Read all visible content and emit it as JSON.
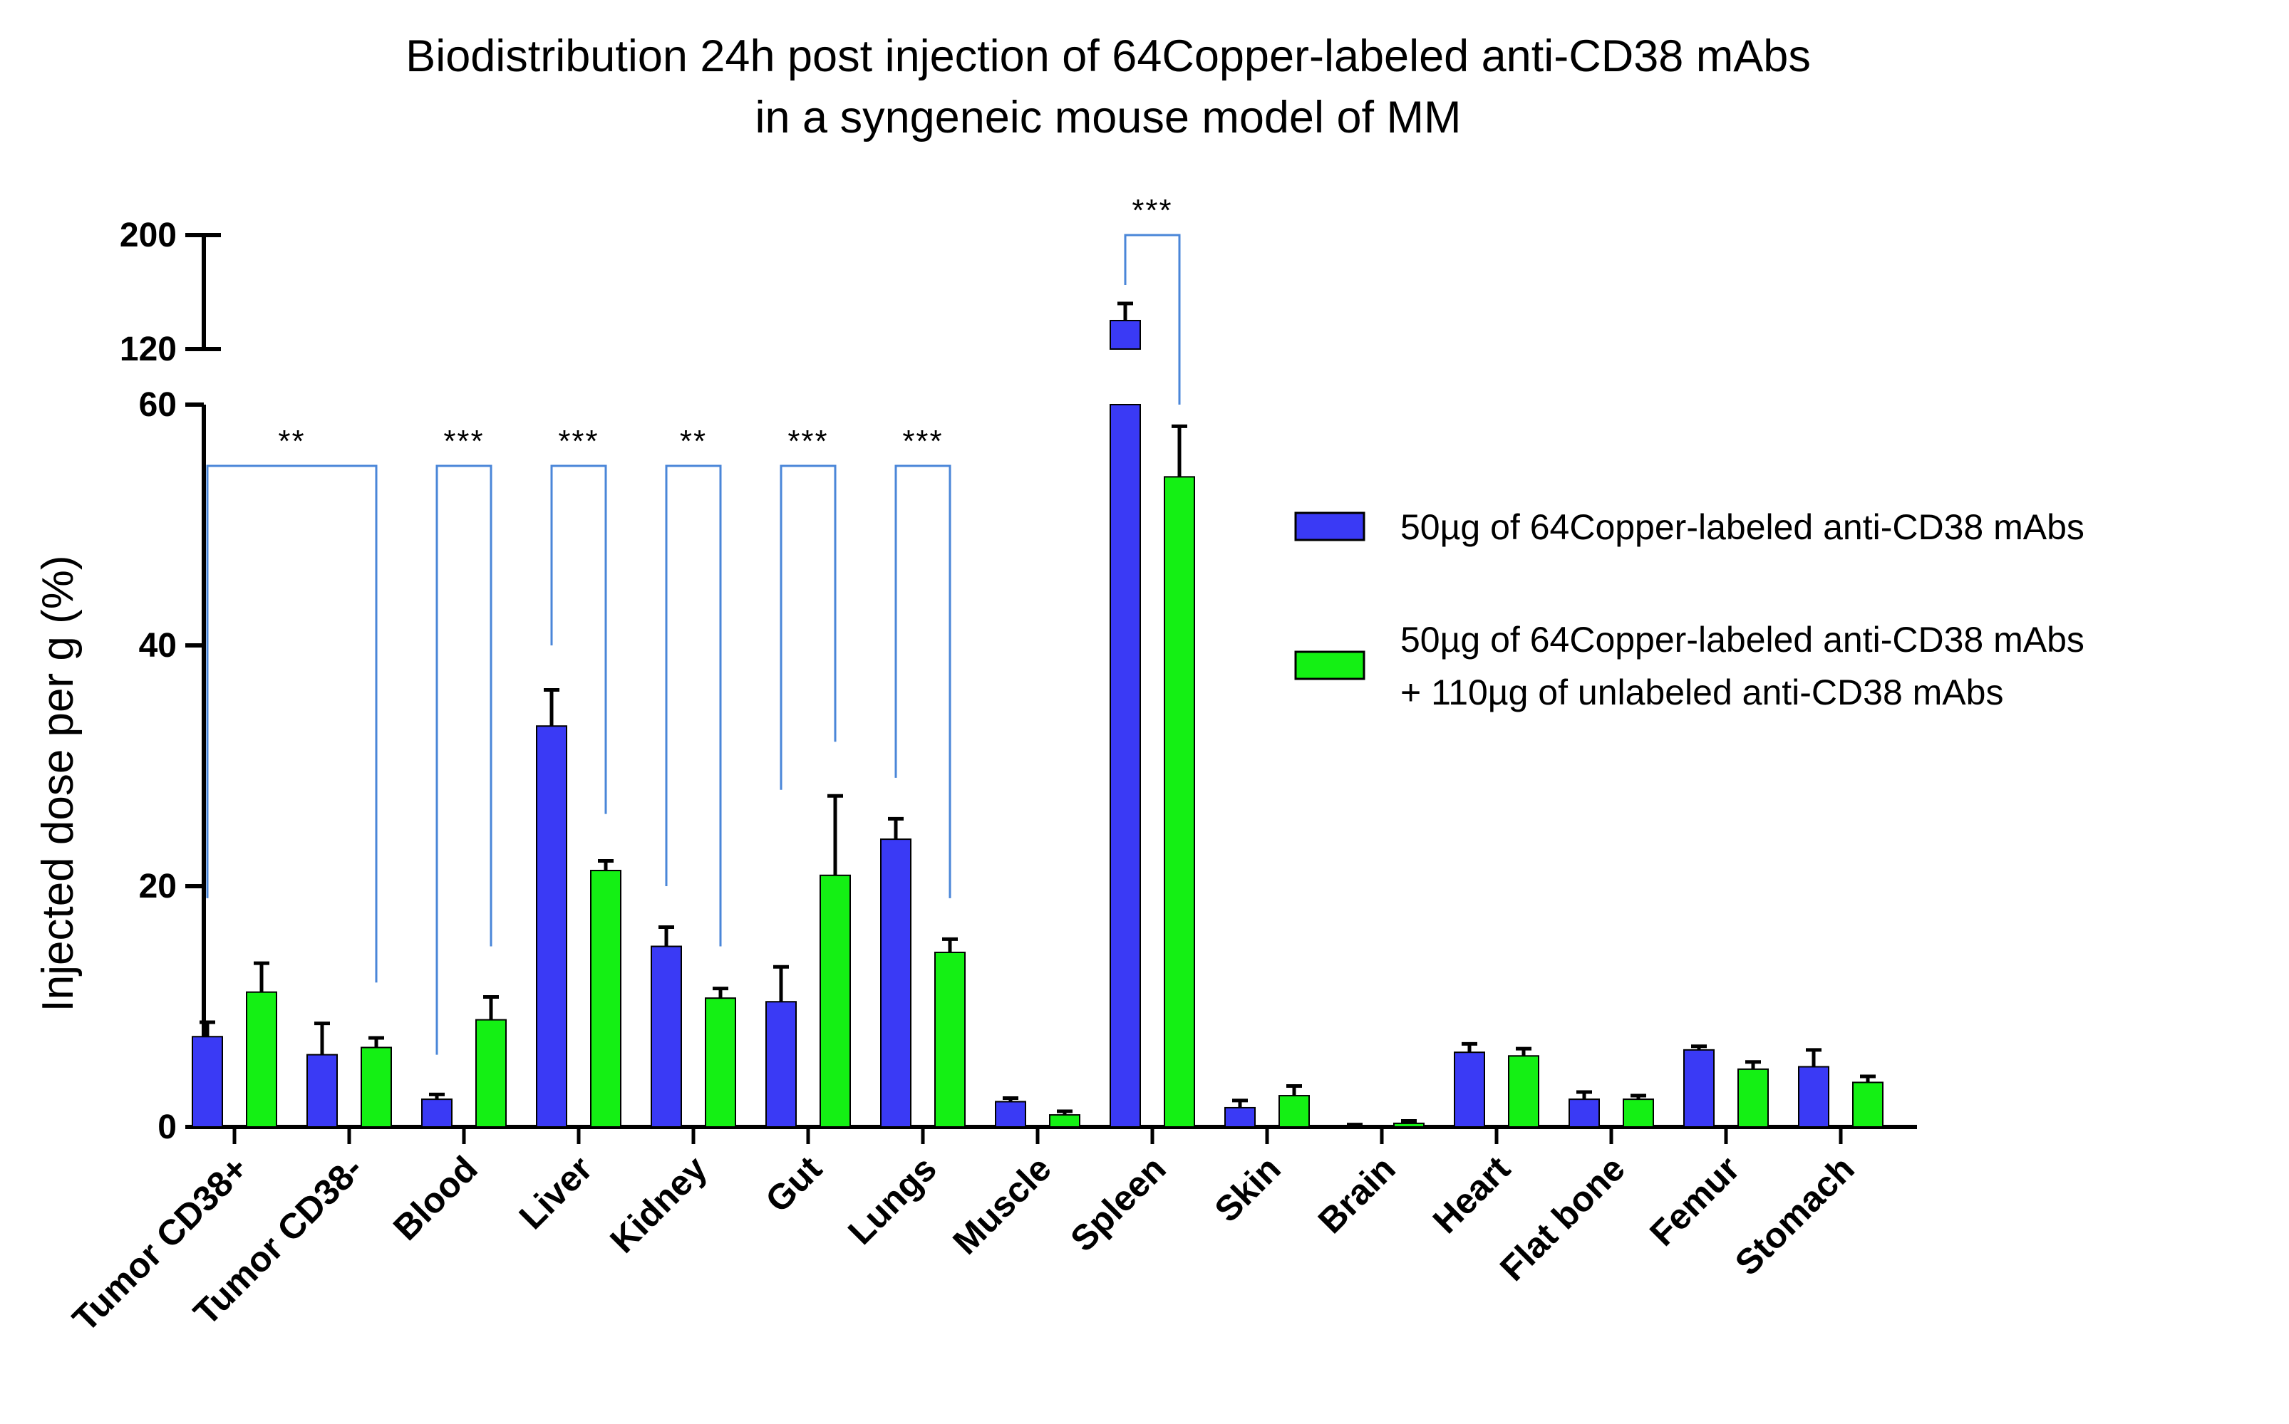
{
  "chart_data": {
    "type": "bar",
    "title_line1": "Biodistribution 24h post injection of 64Copper-labeled anti-CD38 mAbs",
    "title_line2": "in a syngeneic mouse model of MM",
    "ylabel": "Injected dose per g (%)",
    "xlabel": "",
    "y_axis_break": {
      "lower_range": [
        0,
        60
      ],
      "upper_range": [
        120,
        200
      ]
    },
    "yticks_lower": [
      0,
      20,
      40,
      60
    ],
    "yticks_upper": [
      120,
      200
    ],
    "categories": [
      "Tumor CD38+",
      "Tumor CD38-",
      "Blood",
      "Liver",
      "Kidney",
      "Gut",
      "Lungs",
      "Muscle",
      "Spleen",
      "Skin",
      "Brain",
      "Heart",
      "Flat bone",
      "Femur",
      "Stomach"
    ],
    "series": [
      {
        "name": "50µg of 64Copper-labeled anti-CD38 mAbs",
        "color": "#3a3af5",
        "values": [
          7.5,
          6.0,
          2.3,
          33.3,
          15.0,
          10.4,
          23.9,
          2.1,
          140,
          1.6,
          0.1,
          6.2,
          2.3,
          6.4,
          5.0
        ],
        "errors": [
          1.2,
          2.6,
          0.4,
          3.0,
          1.6,
          2.9,
          1.7,
          0.3,
          12,
          0.6,
          0.1,
          0.7,
          0.6,
          0.3,
          1.4
        ]
      },
      {
        "name_line1": "50µg of 64Copper-labeled anti-CD38 mAbs",
        "name_line2": "+ 110µg of unlabeled anti-CD38 mAbs",
        "color": "#14f014",
        "values": [
          11.2,
          6.6,
          8.9,
          21.3,
          10.7,
          20.9,
          14.5,
          1.0,
          54.0,
          2.6,
          0.3,
          5.9,
          2.3,
          4.8,
          3.7
        ],
        "errors": [
          2.4,
          0.8,
          1.9,
          0.8,
          0.8,
          6.6,
          1.1,
          0.3,
          4.2,
          0.8,
          0.2,
          0.6,
          0.3,
          0.6,
          0.5
        ]
      }
    ],
    "significance": [
      {
        "category": "Tumor CD38+",
        "to": "Tumor CD38-",
        "label": "**",
        "left_start": 19,
        "right_start": 12
      },
      {
        "category": "Blood",
        "label": "***",
        "left_start": 6,
        "right_start": 15
      },
      {
        "category": "Liver",
        "label": "***",
        "left_start": 40,
        "right_start": 26
      },
      {
        "category": "Kidney",
        "label": "**",
        "left_start": 20,
        "right_start": 15
      },
      {
        "category": "Gut",
        "label": "***",
        "left_start": 28,
        "right_start": 32
      },
      {
        "category": "Lungs",
        "label": "***",
        "left_start": 29,
        "right_start": 19
      },
      {
        "category": "Spleen",
        "label": "***",
        "left_start": 165,
        "right_start": 62
      }
    ],
    "legend_position": "right"
  }
}
